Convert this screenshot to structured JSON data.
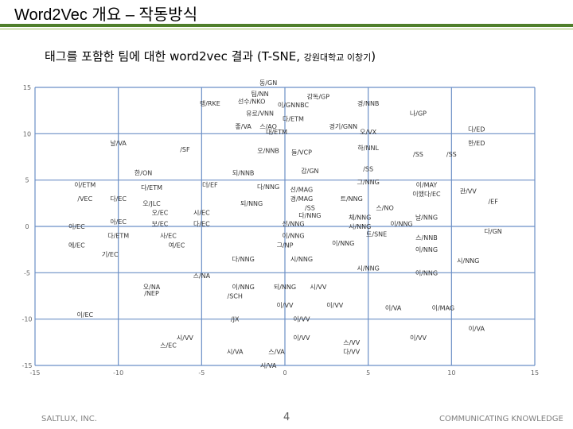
{
  "slide": {
    "title": "Word2Vec 개요 – 작동방식",
    "subtitle_main": "태그를 포함한 팀에 대한 word2vec 결과 (T-SNE,",
    "subtitle_small": "강원대학교 이창기",
    "subtitle_close": ")"
  },
  "footer": {
    "left": "SALTLUX, INC.",
    "page": "4",
    "right": "COMMUNICATING KNOWLEDGE"
  },
  "colors": {
    "accent": "#4f7f2b",
    "accent_light": "#9bbb59",
    "grid": "#6b8fc6"
  },
  "chart_data": {
    "type": "scatter",
    "title": "",
    "xlabel": "",
    "ylabel": "",
    "xlim": [
      -15,
      15
    ],
    "ylim": [
      -15,
      15
    ],
    "x_ticks": [
      "-15",
      "-10",
      "-5",
      "0",
      "5",
      "10",
      "15"
    ],
    "y_ticks": [
      "15",
      "10",
      "5",
      "0",
      "-5",
      "-10",
      "-15"
    ],
    "grid": true,
    "points": [
      {
        "x": -1,
        "y": 15.5,
        "label": "동/GN"
      },
      {
        "x": -1.5,
        "y": 14.3,
        "label": "팀/NN"
      },
      {
        "x": 2,
        "y": 14,
        "label": "감독/GP"
      },
      {
        "x": -4.5,
        "y": 13.3,
        "label": "랭/RKE"
      },
      {
        "x": -2,
        "y": 13.5,
        "label": "선수/NKO"
      },
      {
        "x": 0.5,
        "y": 13.1,
        "label": "이/GNNBC"
      },
      {
        "x": 5,
        "y": 13.3,
        "label": "경/NNB"
      },
      {
        "x": 8,
        "y": 12.2,
        "label": "나/GP"
      },
      {
        "x": -1.5,
        "y": 12.2,
        "label": "유로/VNN"
      },
      {
        "x": 0.5,
        "y": 11.6,
        "label": "다/ETM"
      },
      {
        "x": -2.5,
        "y": 10.8,
        "label": "좋/VA"
      },
      {
        "x": -1,
        "y": 10.8,
        "label": "스/AO"
      },
      {
        "x": 3.5,
        "y": 10.8,
        "label": "경기/GNN"
      },
      {
        "x": -0.5,
        "y": 10.2,
        "label": "대/ETM"
      },
      {
        "x": 5,
        "y": 10.2,
        "label": "오/VX"
      },
      {
        "x": 11.5,
        "y": 10.5,
        "label": "다/ED"
      },
      {
        "x": -10,
        "y": 9,
        "label": "날/VA"
      },
      {
        "x": 11.5,
        "y": 9,
        "label": "한/ED"
      },
      {
        "x": -6,
        "y": 8.3,
        "label": "/SF"
      },
      {
        "x": -1,
        "y": 8.2,
        "label": "오/NNB"
      },
      {
        "x": 1,
        "y": 8,
        "label": "들/VCP"
      },
      {
        "x": 5,
        "y": 8.5,
        "label": "하/NNL"
      },
      {
        "x": 8,
        "y": 7.8,
        "label": "/SS"
      },
      {
        "x": 10,
        "y": 7.8,
        "label": "/SS"
      },
      {
        "x": -8.5,
        "y": 5.8,
        "label": "한/ON"
      },
      {
        "x": -2.5,
        "y": 5.8,
        "label": "되/NNB"
      },
      {
        "x": 1.5,
        "y": 6,
        "label": "감/GN"
      },
      {
        "x": 5,
        "y": 6.2,
        "label": "/SS"
      },
      {
        "x": -12,
        "y": 4.5,
        "label": "이/ETM"
      },
      {
        "x": -8,
        "y": 4.2,
        "label": "다/ETM"
      },
      {
        "x": -4.5,
        "y": 4.5,
        "label": "더/EF"
      },
      {
        "x": -1,
        "y": 4.3,
        "label": "다/NNG"
      },
      {
        "x": 1,
        "y": 4,
        "label": "선/MAG"
      },
      {
        "x": 5,
        "y": 4.8,
        "label": "그/NNG"
      },
      {
        "x": 8.5,
        "y": 4.5,
        "label": "이/MAY"
      },
      {
        "x": 11,
        "y": 3.8,
        "label": "관/VV"
      },
      {
        "x": -12,
        "y": 3,
        "label": "/VEC"
      },
      {
        "x": -10,
        "y": 3,
        "label": "다/EC"
      },
      {
        "x": 1,
        "y": 3,
        "label": "경/MAG"
      },
      {
        "x": 4,
        "y": 3,
        "label": "트/NNG"
      },
      {
        "x": 8.5,
        "y": 3.5,
        "label": "이했다/EC"
      },
      {
        "x": 12.5,
        "y": 2.7,
        "label": "/EF"
      },
      {
        "x": -8,
        "y": 2.5,
        "label": "오/JLC"
      },
      {
        "x": -2,
        "y": 2.5,
        "label": "되/NNG"
      },
      {
        "x": 1.5,
        "y": 2,
        "label": "/SS"
      },
      {
        "x": 6,
        "y": 2,
        "label": "스/NO"
      },
      {
        "x": -7.5,
        "y": 1.5,
        "label": "오/EC"
      },
      {
        "x": -5,
        "y": 1.5,
        "label": "시/EC"
      },
      {
        "x": 1.5,
        "y": 1.2,
        "label": "다/NNG"
      },
      {
        "x": 4.5,
        "y": 1,
        "label": "체/NNG"
      },
      {
        "x": 8.5,
        "y": 1,
        "label": "날/NNG"
      },
      {
        "x": -12.5,
        "y": 0,
        "label": "이/EC"
      },
      {
        "x": -10,
        "y": 0.5,
        "label": "아/EC"
      },
      {
        "x": -7.5,
        "y": 0.3,
        "label": "보/EC"
      },
      {
        "x": -5,
        "y": 0.3,
        "label": "다/EC"
      },
      {
        "x": 0.5,
        "y": 0.3,
        "label": "선/NNG"
      },
      {
        "x": 4.5,
        "y": 0,
        "label": "시/NNG"
      },
      {
        "x": 7,
        "y": 0.3,
        "label": "이/NNG"
      },
      {
        "x": 12.5,
        "y": -0.5,
        "label": "다/GN"
      },
      {
        "x": -10,
        "y": -1,
        "label": "다/ETM"
      },
      {
        "x": -7,
        "y": -1,
        "label": "사/EC"
      },
      {
        "x": 0.5,
        "y": -1,
        "label": "이/NNG"
      },
      {
        "x": 5.5,
        "y": -0.8,
        "label": "트/SNE"
      },
      {
        "x": 8.5,
        "y": -1.2,
        "label": "스/NNB"
      },
      {
        "x": -12.5,
        "y": -2,
        "label": "에/EC"
      },
      {
        "x": -6.5,
        "y": -2,
        "label": "여/EC"
      },
      {
        "x": 0,
        "y": -2,
        "label": "그/NP"
      },
      {
        "x": 3.5,
        "y": -1.8,
        "label": "이/NNG"
      },
      {
        "x": 8.5,
        "y": -2.5,
        "label": "이/NNG"
      },
      {
        "x": -10.5,
        "y": -3,
        "label": "기/EC"
      },
      {
        "x": -2.5,
        "y": -3.5,
        "label": "다/NNG"
      },
      {
        "x": 1,
        "y": -3.5,
        "label": "시/NNG"
      },
      {
        "x": 11,
        "y": -3.7,
        "label": "시/NNG"
      },
      {
        "x": 5,
        "y": -4.5,
        "label": "시/NNG"
      },
      {
        "x": 8.5,
        "y": -5,
        "label": "이/NNG"
      },
      {
        "x": -5,
        "y": -5.3,
        "label": "스/NA"
      },
      {
        "x": -8,
        "y": -6.5,
        "label": "오/NA"
      },
      {
        "x": -2.5,
        "y": -6.5,
        "label": "이/NNG"
      },
      {
        "x": 0,
        "y": -6.5,
        "label": "되/NNG"
      },
      {
        "x": 2,
        "y": -6.5,
        "label": "시/VV"
      },
      {
        "x": -3,
        "y": -7.5,
        "label": "/SCH"
      },
      {
        "x": -8,
        "y": -7.2,
        "label": "/NEP"
      },
      {
        "x": 0,
        "y": -8.5,
        "label": "이/VV"
      },
      {
        "x": 3,
        "y": -8.5,
        "label": "이/VV"
      },
      {
        "x": 6.5,
        "y": -8.8,
        "label": "이/VA"
      },
      {
        "x": 9.5,
        "y": -8.8,
        "label": "이/MAG"
      },
      {
        "x": -12,
        "y": -9.5,
        "label": "이/EC"
      },
      {
        "x": -3,
        "y": -10,
        "label": "/JX"
      },
      {
        "x": 1,
        "y": -10,
        "label": "이/VV"
      },
      {
        "x": 11.5,
        "y": -11,
        "label": "이/VA"
      },
      {
        "x": -6,
        "y": -12,
        "label": "시/VV"
      },
      {
        "x": -7,
        "y": -12.8,
        "label": "스/EC"
      },
      {
        "x": 1,
        "y": -12,
        "label": "이/VV"
      },
      {
        "x": 4,
        "y": -12.5,
        "label": "스/VV"
      },
      {
        "x": 8,
        "y": -12,
        "label": "이/VV"
      },
      {
        "x": -3,
        "y": -13.5,
        "label": "시/VA"
      },
      {
        "x": -0.5,
        "y": -13.5,
        "label": "스/VA"
      },
      {
        "x": 4,
        "y": -13.5,
        "label": "다/VV"
      },
      {
        "x": -1,
        "y": -15,
        "label": "시/VA"
      }
    ]
  }
}
